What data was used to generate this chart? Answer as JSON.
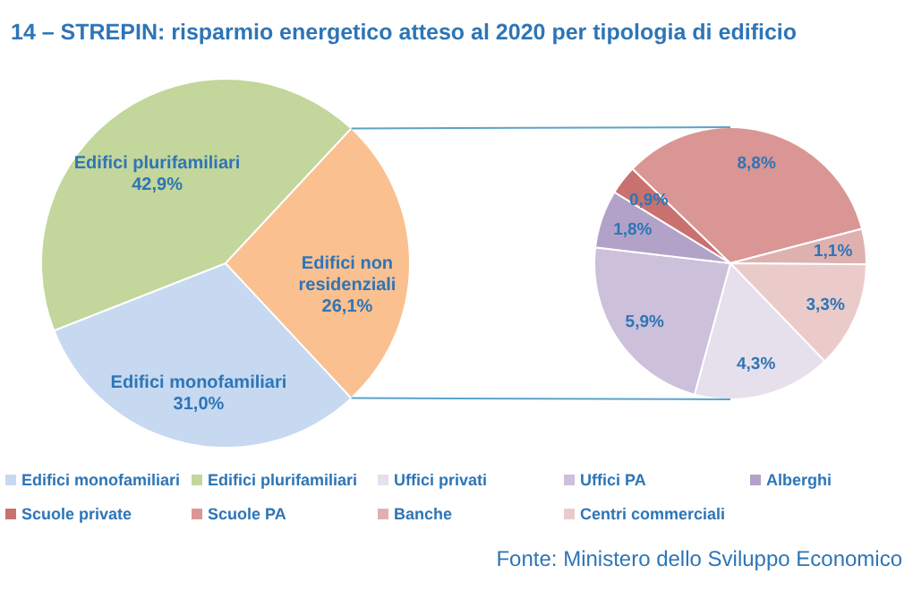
{
  "chart_data": [
    {
      "type": "pie",
      "title": "14 – STREPIN: risparmio energetico atteso al 2020 per tipologia di edificio",
      "categories": [
        "Edifici monofamiliari",
        "Edifici plurifamiliari",
        "Edifici non residenziali"
      ],
      "values": [
        31.0,
        42.9,
        26.1
      ],
      "colors": [
        "#c6d9f1",
        "#c3d69b",
        "#fac090"
      ],
      "value_labels": [
        "31,0%",
        "42,9%",
        "26,1%"
      ],
      "legend": "bottom"
    },
    {
      "type": "pie",
      "categories": [
        "Uffici privati",
        "Uffici PA",
        "Alberghi",
        "Scuole private",
        "Scuole PA",
        "Banche",
        "Centri commerciali"
      ],
      "values": [
        4.3,
        5.9,
        1.8,
        0.9,
        8.8,
        1.1,
        3.3
      ],
      "colors": [
        "#e6e0ec",
        "#ccc0da",
        "#b3a2c7",
        "#c9716f",
        "#d99694",
        "#deb1b0",
        "#ebcbca"
      ],
      "value_labels": [
        "4,3%",
        "5,9%",
        "1,8%",
        "0,9%",
        "8,8%",
        "1,1%",
        "3,3%"
      ],
      "legend": "bottom",
      "annotations": [
        "Fonte: Ministero dello Sviluppo Economico"
      ]
    }
  ]
}
